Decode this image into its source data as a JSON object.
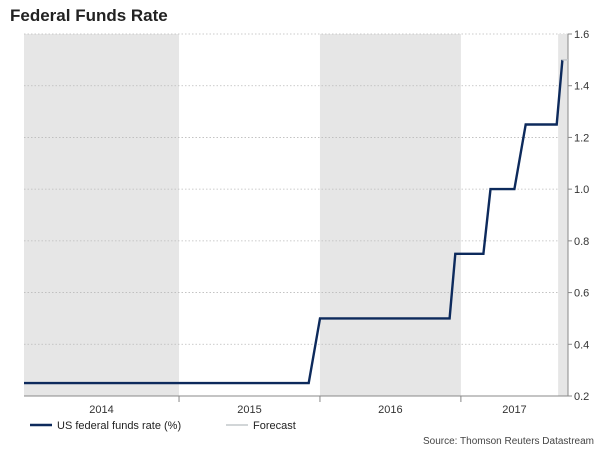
{
  "chart_data": {
    "type": "line",
    "title": "Federal Funds Rate",
    "xlabel": "",
    "ylabel": "",
    "ylim": [
      0.2,
      1.6
    ],
    "y_ticks": [
      0.2,
      0.4,
      0.6,
      0.8,
      1.0,
      1.2,
      1.4,
      1.6
    ],
    "y_tick_labels": [
      "0.2",
      "0.4",
      "0.6",
      "0.8",
      "1.0",
      "1.2",
      "1.4",
      "1.6"
    ],
    "xlim": [
      2013.9,
      2017.76
    ],
    "year_bands": [
      {
        "label": "2014",
        "start": 2013.9,
        "end": 2015.0,
        "shaded": true
      },
      {
        "label": "2015",
        "start": 2015.0,
        "end": 2016.0,
        "shaded": false
      },
      {
        "label": "2016",
        "start": 2016.0,
        "end": 2017.0,
        "shaded": true
      },
      {
        "label": "2017",
        "start": 2017.0,
        "end": 2017.76,
        "shaded": false
      }
    ],
    "forecast_start": 2017.69,
    "grid": true,
    "legend_position": "bottom-left",
    "series": [
      {
        "name": "US federal funds rate (%)",
        "color": "#0d2a5c",
        "points": [
          [
            2013.9,
            0.25
          ],
          [
            2015.92,
            0.25
          ],
          [
            2016.0,
            0.5
          ],
          [
            2016.92,
            0.5
          ],
          [
            2016.96,
            0.75
          ],
          [
            2017.16,
            0.75
          ],
          [
            2017.21,
            1.0
          ],
          [
            2017.38,
            1.0
          ],
          [
            2017.46,
            1.25
          ],
          [
            2017.68,
            1.25
          ],
          [
            2017.72,
            1.5
          ]
        ]
      },
      {
        "name": "Forecast",
        "color": "#c4c8cc",
        "points": [
          [
            2017.72,
            1.5
          ],
          [
            2017.76,
            1.5
          ]
        ]
      }
    ],
    "source": "Source: Thomson Reuters Datastream"
  },
  "colors": {
    "band_shaded": "#e6e6e6",
    "gridline": "#bbbbbb",
    "axis": "#888888"
  }
}
